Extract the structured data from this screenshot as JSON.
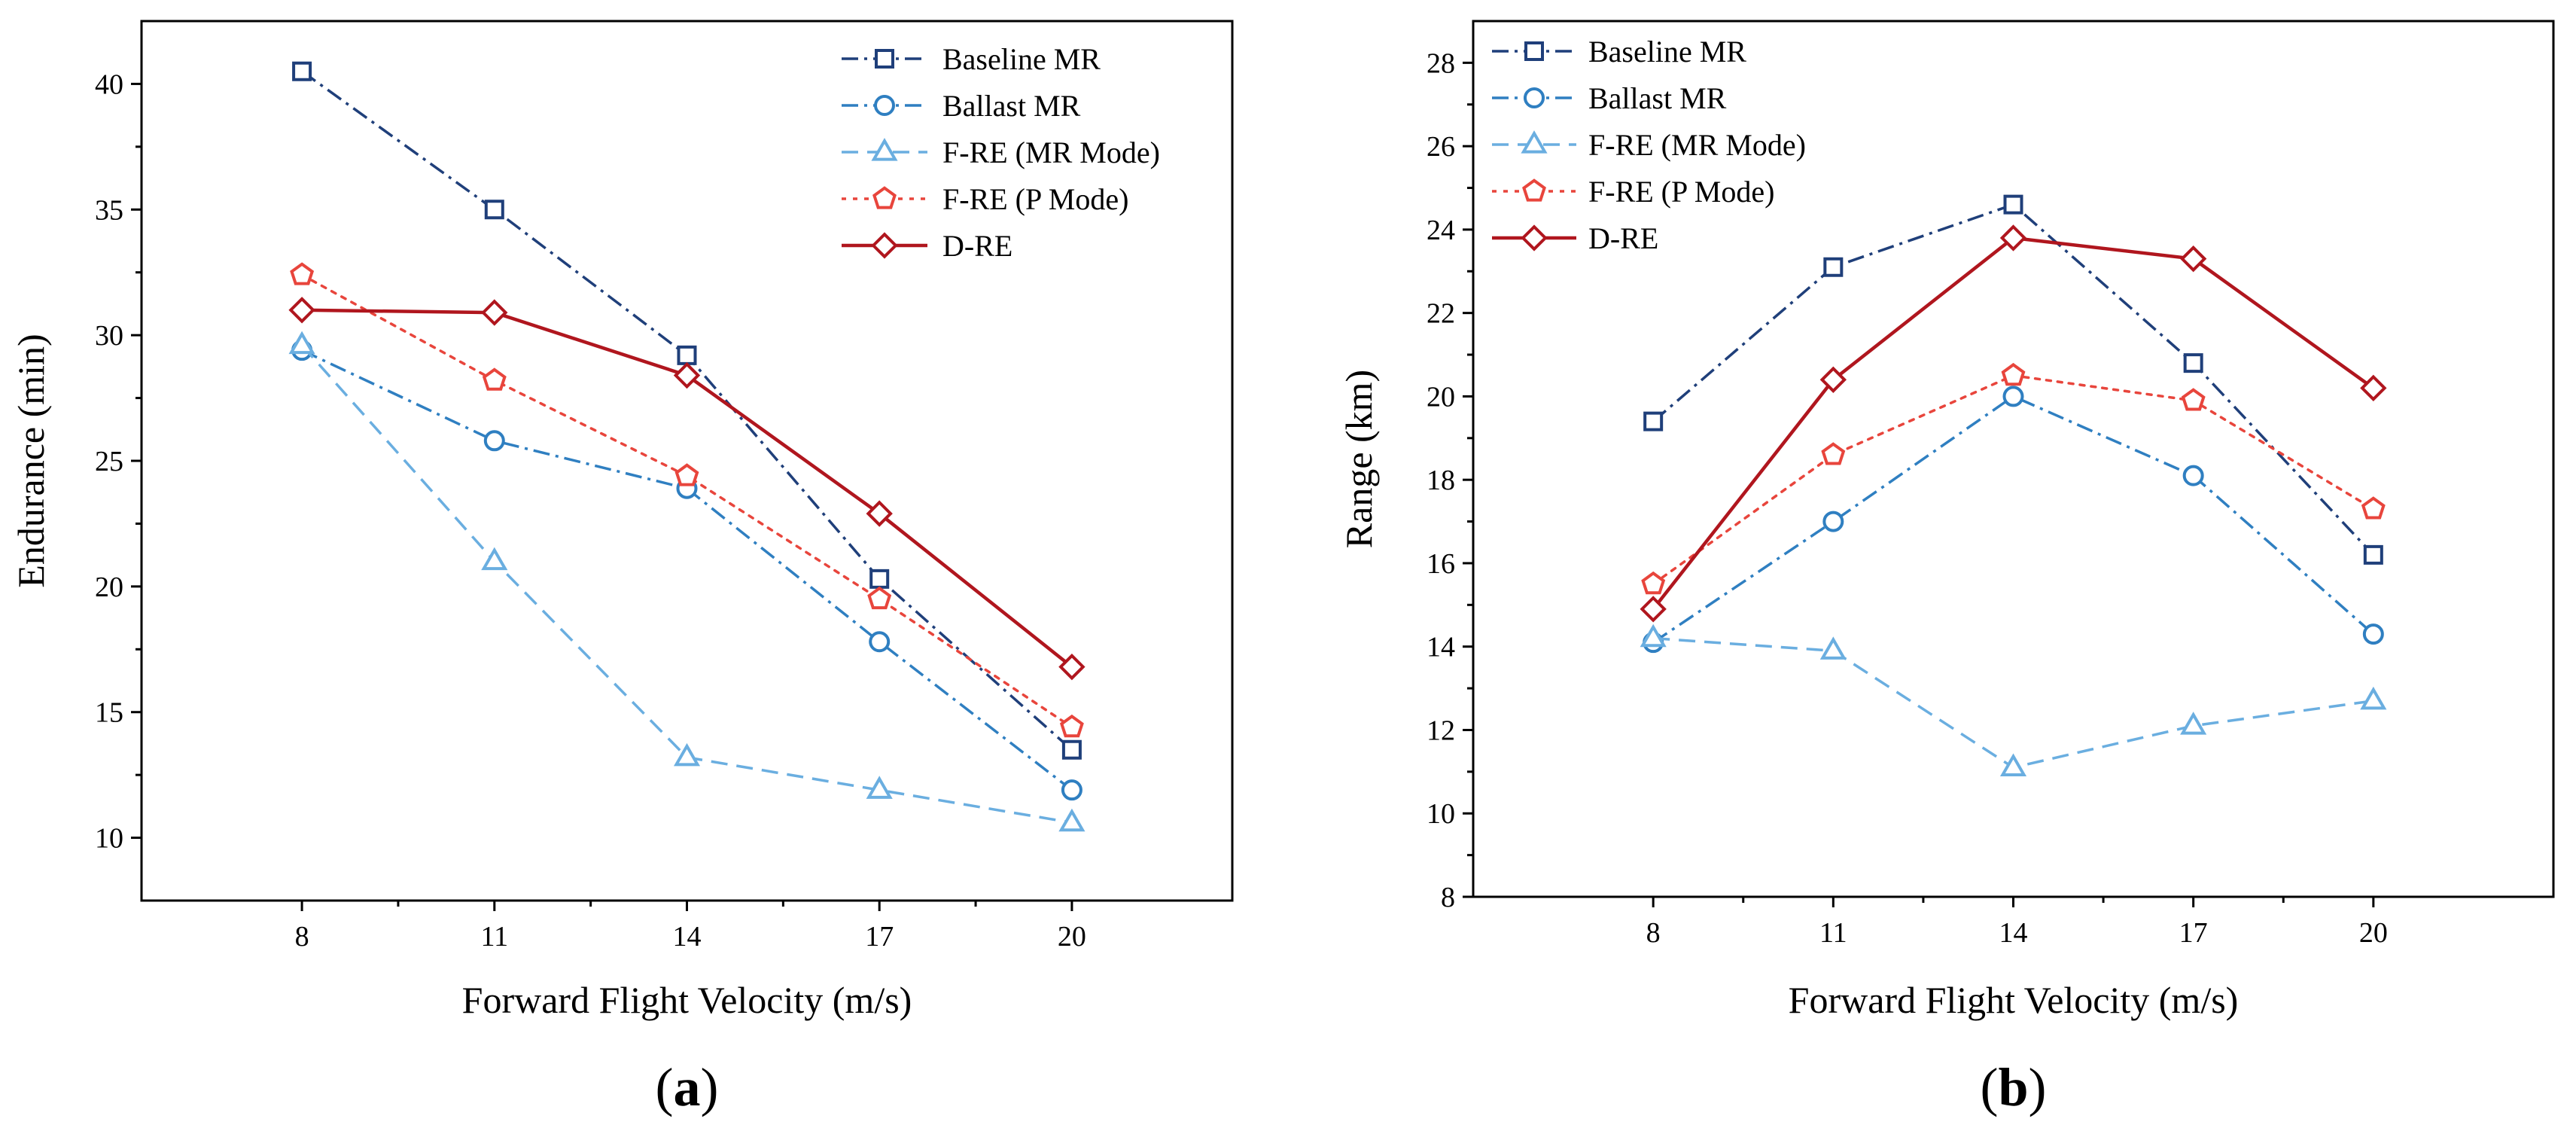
{
  "chart_data": [
    {
      "type": "line",
      "panel_label": "a",
      "xlabel": "Forward Flight Velocity (m/s)",
      "ylabel": "Endurance (min)",
      "x": [
        8,
        11,
        14,
        17,
        20
      ],
      "xlim": [
        5.5,
        22.5
      ],
      "ylim": [
        7.5,
        42.5
      ],
      "yticks": [
        10,
        15,
        20,
        25,
        30,
        35,
        40
      ],
      "legend_position": "top-right",
      "series": [
        {
          "name": "Baseline MR",
          "values": [
            40.5,
            35.0,
            29.2,
            20.3,
            13.5
          ],
          "color": "#1f3f7a",
          "dash": "dashdot",
          "marker": "square"
        },
        {
          "name": "Ballast MR",
          "values": [
            29.4,
            25.8,
            23.9,
            17.8,
            11.9
          ],
          "color": "#2f7fc1",
          "dash": "dashdot",
          "marker": "circle"
        },
        {
          "name": "F-RE (MR Mode)",
          "values": [
            29.6,
            21.0,
            13.2,
            11.9,
            10.6
          ],
          "color": "#6aaee0",
          "dash": "dash",
          "marker": "triangle"
        },
        {
          "name": "F-RE (P Mode)",
          "values": [
            32.4,
            28.2,
            24.4,
            19.5,
            14.4
          ],
          "color": "#e8453c",
          "dash": "dot",
          "marker": "pentagon"
        },
        {
          "name": "D-RE",
          "values": [
            31.0,
            30.9,
            28.4,
            22.9,
            16.8
          ],
          "color": "#b0161e",
          "dash": "solid",
          "marker": "diamond"
        }
      ]
    },
    {
      "type": "line",
      "panel_label": "b",
      "xlabel": "Forward Flight Velocity (m/s)",
      "ylabel": "Range (km)",
      "x": [
        8,
        11,
        14,
        17,
        20
      ],
      "xlim": [
        5.0,
        23.0
      ],
      "ylim": [
        8,
        29
      ],
      "yticks": [
        8,
        10,
        12,
        14,
        16,
        18,
        20,
        22,
        24,
        26,
        28
      ],
      "legend_position": "top-left",
      "series": [
        {
          "name": "Baseline MR",
          "values": [
            19.4,
            23.1,
            24.6,
            20.8,
            16.2
          ],
          "color": "#1f3f7a",
          "dash": "dashdot",
          "marker": "square"
        },
        {
          "name": "Ballast MR",
          "values": [
            14.1,
            17.0,
            20.0,
            18.1,
            14.3
          ],
          "color": "#2f7fc1",
          "dash": "dashdot",
          "marker": "circle"
        },
        {
          "name": "F-RE (MR Mode)",
          "values": [
            14.2,
            13.9,
            11.1,
            12.1,
            12.7
          ],
          "color": "#6aaee0",
          "dash": "dash",
          "marker": "triangle"
        },
        {
          "name": "F-RE (P Mode)",
          "values": [
            15.5,
            18.6,
            20.5,
            19.9,
            17.3
          ],
          "color": "#e8453c",
          "dash": "dot",
          "marker": "pentagon"
        },
        {
          "name": "D-RE",
          "values": [
            14.9,
            20.4,
            23.8,
            23.3,
            20.2
          ],
          "color": "#b0161e",
          "dash": "solid",
          "marker": "diamond"
        }
      ]
    }
  ]
}
